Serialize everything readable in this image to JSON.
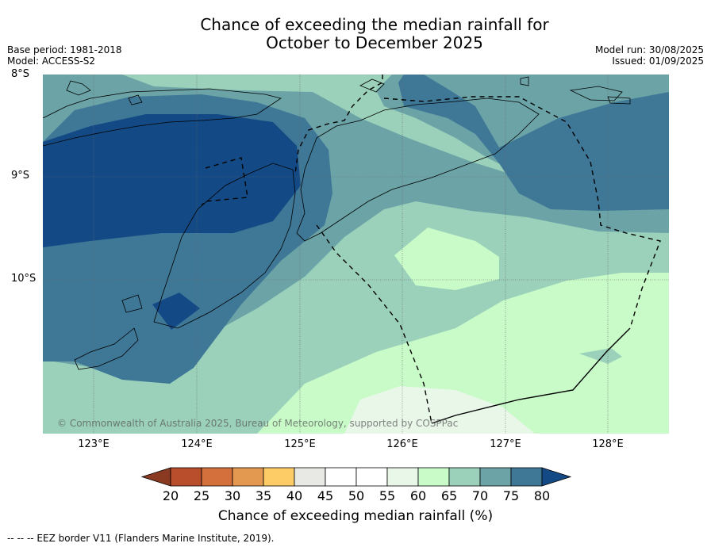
{
  "title_line1": "Chance of exceeding the median rainfall for",
  "title_line2": "October to December 2025",
  "meta": {
    "base_period": "Base period: 1981-2018",
    "model": "Model: ACCESS-S2",
    "model_run": "Model run: 30/08/2025",
    "issued": "Issued: 01/09/2025"
  },
  "lat_labels": [
    "8°S",
    "9°S",
    "10°S"
  ],
  "lon_labels": [
    "123°E",
    "124°E",
    "125°E",
    "126°E",
    "127°E",
    "128°E"
  ],
  "copyright": "© Commonwealth of Australia 2025, Bureau of Meteorology, supported by COSPPac",
  "colorbar": {
    "ticks": [
      "20",
      "25",
      "30",
      "35",
      "40",
      "45",
      "50",
      "55",
      "60",
      "65",
      "70",
      "75",
      "80"
    ],
    "colors": [
      "#8b3a22",
      "#b84e2c",
      "#d3703b",
      "#e39a50",
      "#fdcc66",
      "#e8e8e4",
      "#ffffff",
      "#ffffff",
      "#e9f7e9",
      "#c8fbc8",
      "#9bd1bb",
      "#6ba3a6",
      "#3f7897",
      "#134a85"
    ],
    "label": "Chance of exceeding median rainfall (%)"
  },
  "footer": "-- -- -- EEZ border V11 (Flanders Marine Institute, 2019)."
}
